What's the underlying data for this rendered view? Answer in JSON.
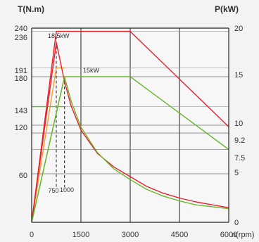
{
  "chart_data": {
    "type": "line",
    "x_axis": {
      "label": "n(rpm)",
      "ticks": [
        0,
        1500,
        3000,
        4500,
        6000
      ],
      "tick_labels": [
        "0",
        "1500",
        "3000",
        "4500",
        "6000"
      ],
      "range": [
        0,
        6000
      ]
    },
    "y_left": {
      "label": "T(N.m)",
      "ticks": [
        60,
        120,
        143,
        180,
        191,
        236,
        240
      ],
      "tick_labels": [
        "60",
        "120",
        "143",
        "180",
        "191",
        "236",
        "240"
      ],
      "range": [
        0,
        240
      ]
    },
    "y_right": {
      "label": "P(kW)",
      "ticks": [
        0,
        5,
        7.5,
        9.2,
        10,
        15,
        20
      ],
      "tick_labels": [
        "0",
        "5",
        "7.5",
        "9.2",
        "10",
        "15",
        "20"
      ],
      "range": [
        0,
        20
      ]
    },
    "annotations": [
      {
        "text": "18.5kW",
        "x": 750,
        "y": 236
      },
      {
        "text": "15kW",
        "x": 1000,
        "y": 180
      },
      {
        "text": "750",
        "x": 750
      },
      {
        "text": "1000",
        "x": 1000
      }
    ],
    "series": [
      {
        "axis": "left",
        "color": "#e8202a",
        "points": [
          [
            0,
            0
          ],
          [
            750,
            236
          ],
          [
            3000,
            236
          ],
          [
            6000,
            118
          ]
        ]
      },
      {
        "axis": "left",
        "color": "#f0a030",
        "points": [
          [
            0,
            0
          ],
          [
            750,
            191
          ],
          [
            1000,
            191
          ]
        ]
      },
      {
        "axis": "left",
        "color": "#6ab82e",
        "points": [
          [
            0,
            0
          ],
          [
            1000,
            180
          ],
          [
            3000,
            180
          ],
          [
            6000,
            90
          ]
        ]
      },
      {
        "axis": "left",
        "color": "#6ab82e",
        "points": [
          [
            0,
            143
          ],
          [
            1000,
            143
          ]
        ]
      },
      {
        "axis": "right",
        "color": "#e8202a",
        "points": [
          [
            0,
            0
          ],
          [
            750,
            18.5
          ],
          [
            1000,
            14.5
          ],
          [
            1200,
            12.0
          ],
          [
            1500,
            9.5
          ],
          [
            2000,
            7.1
          ],
          [
            2500,
            5.7
          ],
          [
            3000,
            4.7
          ],
          [
            3500,
            3.7
          ],
          [
            4000,
            3.0
          ],
          [
            4500,
            2.5
          ],
          [
            5000,
            2.1
          ],
          [
            5500,
            1.8
          ],
          [
            6000,
            1.5
          ]
        ]
      },
      {
        "axis": "right",
        "color": "#6ab82e",
        "points": [
          [
            0,
            0
          ],
          [
            1000,
            15
          ],
          [
            1200,
            12.5
          ],
          [
            1500,
            9.8
          ],
          [
            2000,
            7.2
          ],
          [
            2500,
            5.5
          ],
          [
            3000,
            4.4
          ],
          [
            3500,
            3.4
          ],
          [
            4000,
            2.7
          ],
          [
            4500,
            2.2
          ],
          [
            5000,
            1.8
          ],
          [
            5500,
            1.6
          ],
          [
            6000,
            1.4
          ]
        ]
      }
    ],
    "dashed_guides": [
      {
        "x": 750,
        "y_left": 236
      },
      {
        "x": 1000,
        "y_left": 180
      }
    ],
    "grid": true
  }
}
